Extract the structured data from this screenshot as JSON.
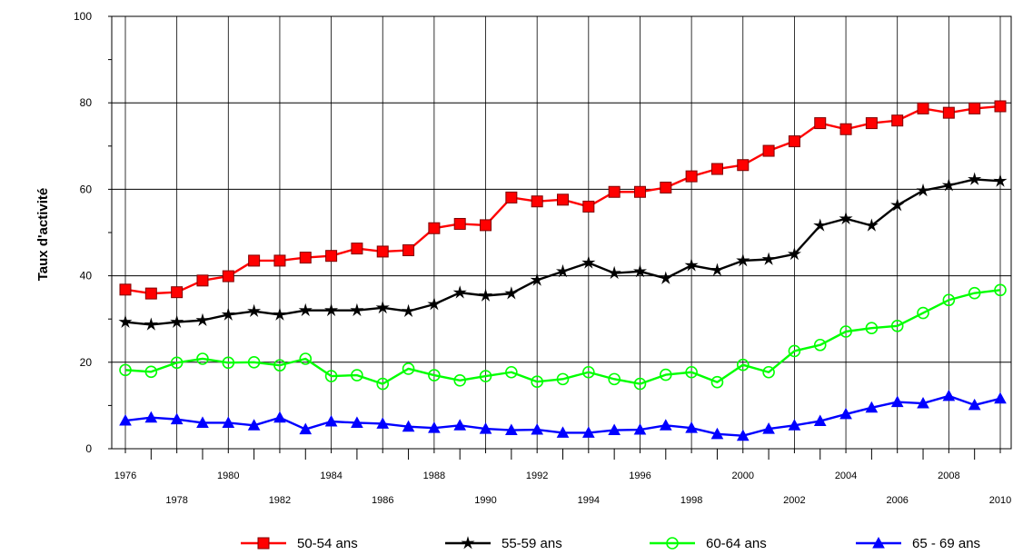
{
  "chart_data": {
    "type": "line",
    "ylabel": "Taux d'activité",
    "xlabel": "",
    "ylim": [
      0,
      100
    ],
    "yticks": [
      "0",
      "20",
      "40",
      "60",
      "80",
      "100"
    ],
    "x": [
      1976,
      1977,
      1978,
      1979,
      1980,
      1981,
      1982,
      1983,
      1984,
      1985,
      1986,
      1987,
      1988,
      1989,
      1990,
      1991,
      1992,
      1993,
      1994,
      1995,
      1996,
      1997,
      1998,
      1999,
      2000,
      2001,
      2002,
      2003,
      2004,
      2005,
      2006,
      2007,
      2008,
      2009,
      2010
    ],
    "xtick_labels_top": [
      "1976",
      "1980",
      "1984",
      "1988",
      "1992",
      "1996",
      "2000",
      "2004",
      "2008"
    ],
    "xtick_labels_bottom": [
      "1978",
      "1982",
      "1986",
      "1990",
      "1994",
      "1998",
      "2002",
      "2006",
      "2010"
    ],
    "grid": true,
    "legend_position": "bottom",
    "series": [
      {
        "name": "50-54 ans",
        "color": "#ff0000",
        "marker": "square",
        "values": [
          36.8,
          35.9,
          36.2,
          38.9,
          39.9,
          43.5,
          43.5,
          44.2,
          44.6,
          46.3,
          45.6,
          45.9,
          51.0,
          52.0,
          51.7,
          58.1,
          57.2,
          57.6,
          56.0,
          59.4,
          59.4,
          60.4,
          63.0,
          64.7,
          65.6,
          68.9,
          71.1,
          75.3,
          73.9,
          75.3,
          75.9,
          78.7,
          77.7,
          78.7,
          79.2
        ]
      },
      {
        "name": "55-59 ans",
        "color": "#000000",
        "marker": "star",
        "values": [
          29.3,
          28.7,
          29.3,
          29.7,
          31.0,
          31.8,
          31.0,
          32.0,
          32.0,
          32.0,
          32.6,
          31.8,
          33.4,
          36.1,
          35.4,
          35.9,
          39.0,
          41.0,
          43.0,
          40.6,
          41.0,
          39.4,
          42.4,
          41.3,
          43.5,
          43.8,
          45.0,
          51.6,
          53.2,
          51.6,
          56.3,
          59.7,
          60.9,
          62.3,
          61.9
        ]
      },
      {
        "name": "60-64 ans",
        "color": "#00ff00",
        "marker": "circle",
        "values": [
          18.2,
          17.8,
          19.9,
          20.8,
          19.9,
          20.0,
          19.3,
          20.8,
          16.8,
          17.0,
          15.0,
          18.5,
          17.0,
          15.8,
          16.8,
          17.7,
          15.5,
          16.1,
          17.7,
          16.1,
          15.0,
          17.1,
          17.7,
          15.4,
          19.4,
          17.7,
          22.6,
          24.0,
          27.1,
          27.9,
          28.4,
          31.4,
          34.4,
          36.0,
          36.7
        ]
      },
      {
        "name": "65 - 69 ans",
        "color": "#0000ff",
        "marker": "triangle",
        "values": [
          6.5,
          7.2,
          6.8,
          6.0,
          6.0,
          5.4,
          7.2,
          4.5,
          6.3,
          6.0,
          5.8,
          5.1,
          4.8,
          5.4,
          4.6,
          4.3,
          4.4,
          3.7,
          3.7,
          4.3,
          4.4,
          5.4,
          4.8,
          3.4,
          3.0,
          4.6,
          5.4,
          6.4,
          8.0,
          9.5,
          10.8,
          10.5,
          12.2,
          10.1,
          11.6
        ]
      }
    ]
  }
}
